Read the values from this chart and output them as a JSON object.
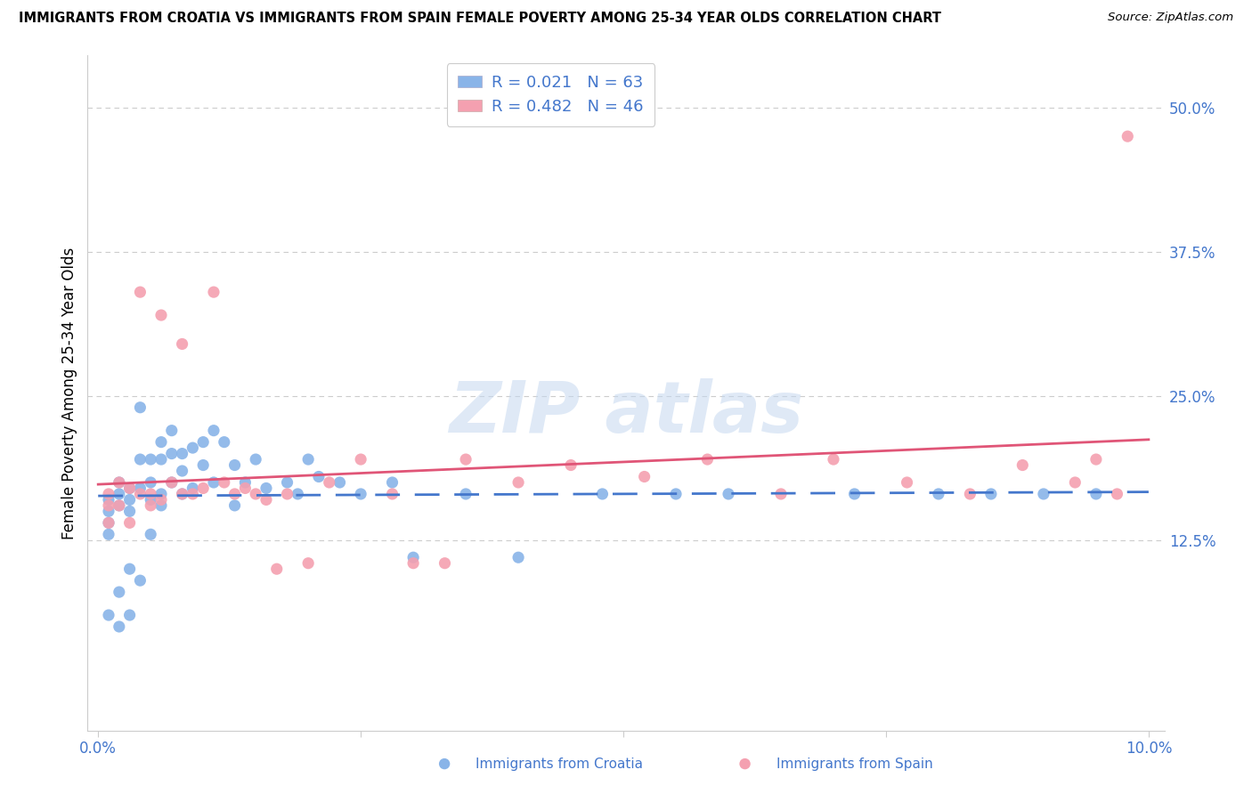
{
  "title": "IMMIGRANTS FROM CROATIA VS IMMIGRANTS FROM SPAIN FEMALE POVERTY AMONG 25-34 YEAR OLDS CORRELATION CHART",
  "source": "Source: ZipAtlas.com",
  "ylabel": "Female Poverty Among 25-34 Year Olds",
  "y_ticks": [
    0.125,
    0.25,
    0.375,
    0.5
  ],
  "y_tick_labels": [
    "12.5%",
    "25.0%",
    "37.5%",
    "50.0%"
  ],
  "x_range": [
    0.0,
    0.1
  ],
  "y_range": [
    -0.04,
    0.545
  ],
  "color_croatia": "#89b4e8",
  "color_spain": "#f4a0b0",
  "color_line_croatia": "#4477cc",
  "color_line_spain": "#e05577",
  "color_text_blue": "#4477cc",
  "legend_label_1": "R = 0.021   N = 63",
  "legend_label_2": "R = 0.482   N = 46",
  "bottom_label_croatia": "Immigrants from Croatia",
  "bottom_label_spain": "Immigrants from Spain",
  "croatia_x": [
    0.001,
    0.001,
    0.001,
    0.001,
    0.001,
    0.002,
    0.002,
    0.002,
    0.002,
    0.002,
    0.003,
    0.003,
    0.003,
    0.003,
    0.003,
    0.004,
    0.004,
    0.004,
    0.004,
    0.005,
    0.005,
    0.005,
    0.005,
    0.006,
    0.006,
    0.006,
    0.006,
    0.007,
    0.007,
    0.007,
    0.008,
    0.008,
    0.008,
    0.009,
    0.009,
    0.01,
    0.01,
    0.011,
    0.011,
    0.012,
    0.013,
    0.013,
    0.014,
    0.015,
    0.016,
    0.018,
    0.019,
    0.02,
    0.021,
    0.023,
    0.025,
    0.028,
    0.03,
    0.035,
    0.04,
    0.048,
    0.055,
    0.06,
    0.072,
    0.08,
    0.085,
    0.09,
    0.095
  ],
  "croatia_y": [
    0.16,
    0.15,
    0.14,
    0.13,
    0.06,
    0.175,
    0.165,
    0.155,
    0.08,
    0.05,
    0.17,
    0.16,
    0.15,
    0.1,
    0.06,
    0.24,
    0.195,
    0.17,
    0.09,
    0.195,
    0.175,
    0.16,
    0.13,
    0.21,
    0.195,
    0.165,
    0.155,
    0.22,
    0.2,
    0.175,
    0.2,
    0.185,
    0.165,
    0.205,
    0.17,
    0.21,
    0.19,
    0.22,
    0.175,
    0.21,
    0.19,
    0.155,
    0.175,
    0.195,
    0.17,
    0.175,
    0.165,
    0.195,
    0.18,
    0.175,
    0.165,
    0.175,
    0.11,
    0.165,
    0.11,
    0.165,
    0.165,
    0.165,
    0.165,
    0.165,
    0.165,
    0.165,
    0.165
  ],
  "spain_x": [
    0.001,
    0.001,
    0.001,
    0.002,
    0.002,
    0.003,
    0.003,
    0.004,
    0.004,
    0.005,
    0.005,
    0.006,
    0.006,
    0.007,
    0.008,
    0.008,
    0.009,
    0.01,
    0.011,
    0.012,
    0.013,
    0.014,
    0.015,
    0.016,
    0.017,
    0.018,
    0.02,
    0.022,
    0.025,
    0.028,
    0.03,
    0.033,
    0.035,
    0.04,
    0.045,
    0.052,
    0.058,
    0.065,
    0.07,
    0.077,
    0.083,
    0.088,
    0.093,
    0.095,
    0.097,
    0.098
  ],
  "spain_y": [
    0.165,
    0.155,
    0.14,
    0.175,
    0.155,
    0.17,
    0.14,
    0.34,
    0.165,
    0.165,
    0.155,
    0.16,
    0.32,
    0.175,
    0.295,
    0.165,
    0.165,
    0.17,
    0.34,
    0.175,
    0.165,
    0.17,
    0.165,
    0.16,
    0.1,
    0.165,
    0.105,
    0.175,
    0.195,
    0.165,
    0.105,
    0.105,
    0.195,
    0.175,
    0.19,
    0.18,
    0.195,
    0.165,
    0.195,
    0.175,
    0.165,
    0.19,
    0.175,
    0.195,
    0.165,
    0.475
  ],
  "grid_color": "#cccccc",
  "watermark_color": "#c5d8f0"
}
